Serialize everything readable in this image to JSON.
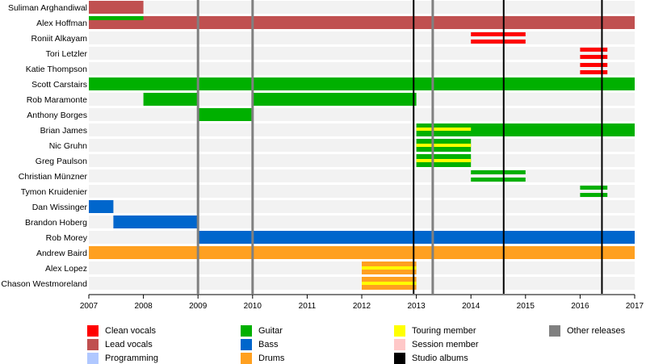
{
  "chart_data": {
    "type": "timeline",
    "x_ticks": [
      "2007",
      "2008",
      "2009",
      "2010",
      "2011",
      "2012",
      "2013",
      "2014",
      "2015",
      "2016",
      "2017"
    ],
    "xlim": [
      2007,
      2017
    ],
    "members": [
      "Suliman Arghandiwal",
      "Alex Hoffman",
      "Roniit Alkayam",
      "Tori Letzler",
      "Katie Thompson",
      "Scott Carstairs",
      "Rob Maramonte",
      "Anthony Borges",
      "Brian James",
      "Nic Gruhn",
      "Greg Paulson",
      "Christian Münzner",
      "Tymon Kruidenier",
      "Dan Wissinger",
      "Brandon Hoberg",
      "Rob Morey",
      "Andrew Baird",
      "Alex Lopez",
      "Chason Westmoreland"
    ],
    "bars": [
      {
        "member": 0,
        "role": "Lead vocals",
        "start": 2007.0,
        "end": 2008.0,
        "style": "full"
      },
      {
        "member": 1,
        "role": "Lead vocals",
        "start": 2007.0,
        "end": 2017.0,
        "style": "full"
      },
      {
        "member": 1,
        "role": "Guitar",
        "start": 2007.0,
        "end": 2008.0,
        "style": "overlay"
      },
      {
        "member": 2,
        "role": "Clean vocals",
        "start": 2014.0,
        "end": 2015.0,
        "style": "split2"
      },
      {
        "member": 3,
        "role": "Clean vocals",
        "start": 2016.0,
        "end": 2016.5,
        "style": "split2"
      },
      {
        "member": 4,
        "role": "Clean vocals",
        "start": 2016.0,
        "end": 2016.5,
        "style": "split2"
      },
      {
        "member": 5,
        "role": "Guitar",
        "start": 2007.0,
        "end": 2017.0,
        "style": "full"
      },
      {
        "member": 6,
        "role": "Guitar",
        "start": 2008.0,
        "end": 2009.0,
        "style": "full"
      },
      {
        "member": 6,
        "role": "Guitar",
        "start": 2010.0,
        "end": 2013.0,
        "style": "full"
      },
      {
        "member": 7,
        "role": "Guitar",
        "start": 2009.0,
        "end": 2010.0,
        "style": "full"
      },
      {
        "member": 8,
        "role": "Guitar",
        "start": 2013.0,
        "end": 2017.0,
        "style": "full"
      },
      {
        "member": 8,
        "role": "Touring member",
        "start": 2013.0,
        "end": 2014.0,
        "style": "stripe"
      },
      {
        "member": 9,
        "role": "Guitar",
        "start": 2013.0,
        "end": 2014.0,
        "style": "touring"
      },
      {
        "member": 10,
        "role": "Guitar",
        "start": 2013.0,
        "end": 2014.0,
        "style": "touring"
      },
      {
        "member": 11,
        "role": "Guitar",
        "start": 2014.0,
        "end": 2015.0,
        "style": "split2"
      },
      {
        "member": 12,
        "role": "Guitar",
        "start": 2016.0,
        "end": 2016.5,
        "style": "split2"
      },
      {
        "member": 13,
        "role": "Bass",
        "start": 2007.0,
        "end": 2007.45,
        "style": "full"
      },
      {
        "member": 14,
        "role": "Bass",
        "start": 2007.45,
        "end": 2009.0,
        "style": "full"
      },
      {
        "member": 15,
        "role": "Bass",
        "start": 2009.0,
        "end": 2017.0,
        "style": "full"
      },
      {
        "member": 16,
        "role": "Drums",
        "start": 2007.0,
        "end": 2017.0,
        "style": "full"
      },
      {
        "member": 17,
        "role": "Drums",
        "start": 2012.0,
        "end": 2013.0,
        "style": "touring"
      },
      {
        "member": 18,
        "role": "Drums",
        "start": 2012.0,
        "end": 2013.0,
        "style": "touring"
      }
    ],
    "other_releases": [
      2009.0,
      2010.0,
      2013.3
    ],
    "studio_albums": [
      2012.95,
      2014.6,
      2016.4
    ],
    "legend": [
      {
        "label": "Clean vocals",
        "color": "#ff0000",
        "column": 0,
        "row": 0
      },
      {
        "label": "Lead vocals",
        "color": "#c05050",
        "column": 0,
        "row": 1
      },
      {
        "label": "Programming",
        "color": "#b0c8ff",
        "column": 0,
        "row": 2
      },
      {
        "label": "Guitar",
        "color": "#00b000",
        "column": 1,
        "row": 0
      },
      {
        "label": "Bass",
        "color": "#0066cc",
        "column": 1,
        "row": 1
      },
      {
        "label": "Drums",
        "color": "#ffa020",
        "column": 1,
        "row": 2
      },
      {
        "label": "Touring member",
        "color": "#ffff00",
        "column": 2,
        "row": 0
      },
      {
        "label": "Session member",
        "color": "#ffc8c8",
        "column": 2,
        "row": 1
      },
      {
        "label": "Studio albums",
        "color": "#000000",
        "column": 2,
        "row": 2
      },
      {
        "label": "Other releases",
        "color": "#808080",
        "column": 3,
        "row": 0
      }
    ],
    "colors": {
      "Clean vocals": "#ff0000",
      "Lead vocals": "#c05050",
      "Guitar": "#00b000",
      "Bass": "#0066cc",
      "Drums": "#ffa020",
      "Touring member": "#ffff00",
      "Studio albums": "#000000",
      "Other releases": "#808080",
      "row_background": "#f2f2f2"
    }
  }
}
